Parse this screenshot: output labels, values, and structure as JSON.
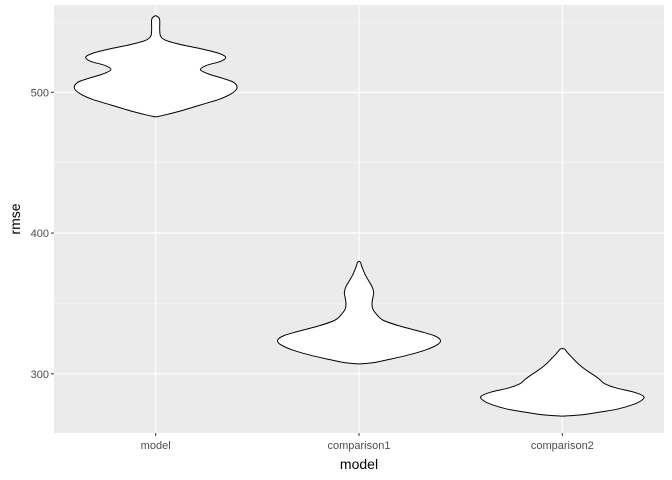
{
  "chart_data": {
    "type": "violin",
    "xlabel": "model",
    "ylabel": "rmse",
    "categories": [
      "model",
      "comparison1",
      "comparison2"
    ],
    "ylim": [
      258,
      562
    ],
    "yticks": [
      300,
      400,
      500
    ],
    "grid": true,
    "legend": "none",
    "colors": {
      "panel": "#EBEBEB",
      "grid_major": "#FFFFFF",
      "grid_minor": "#F5F5F5",
      "violin_fill": "#FFFFFF",
      "violin_outline": "#000000",
      "tick_label": "#4D4D4D",
      "axis_title": "#000000"
    },
    "violins": [
      {
        "category": "model",
        "min": 482.5,
        "max": 554.5,
        "density_profile": [
          [
            482.5,
            0.0
          ],
          [
            484,
            0.12
          ],
          [
            487,
            0.32
          ],
          [
            491,
            0.55
          ],
          [
            495,
            0.78
          ],
          [
            499,
            0.93
          ],
          [
            503,
            1.0
          ],
          [
            507,
            0.96
          ],
          [
            510,
            0.82
          ],
          [
            513,
            0.65
          ],
          [
            516,
            0.55
          ],
          [
            519,
            0.62
          ],
          [
            522,
            0.8
          ],
          [
            525,
            0.86
          ],
          [
            528,
            0.76
          ],
          [
            531,
            0.55
          ],
          [
            534,
            0.3
          ],
          [
            537,
            0.12
          ],
          [
            540,
            0.06
          ],
          [
            544,
            0.05
          ],
          [
            548,
            0.05
          ],
          [
            551,
            0.05
          ],
          [
            553,
            0.04
          ],
          [
            554.5,
            0.0
          ]
        ]
      },
      {
        "category": "comparison1",
        "min": 307,
        "max": 380,
        "density_profile": [
          [
            307,
            0.0
          ],
          [
            308,
            0.18
          ],
          [
            310,
            0.35
          ],
          [
            313,
            0.58
          ],
          [
            317,
            0.82
          ],
          [
            321,
            0.97
          ],
          [
            324,
            1.0
          ],
          [
            327,
            0.93
          ],
          [
            330,
            0.76
          ],
          [
            334,
            0.5
          ],
          [
            338,
            0.3
          ],
          [
            342,
            0.22
          ],
          [
            346,
            0.17
          ],
          [
            350,
            0.16
          ],
          [
            354,
            0.17
          ],
          [
            358,
            0.18
          ],
          [
            362,
            0.16
          ],
          [
            366,
            0.12
          ],
          [
            370,
            0.08
          ],
          [
            374,
            0.05
          ],
          [
            377,
            0.03
          ],
          [
            379,
            0.02
          ],
          [
            380,
            0.0
          ]
        ]
      },
      {
        "category": "comparison2",
        "min": 270,
        "max": 318,
        "density_profile": [
          [
            270,
            0.0
          ],
          [
            271,
            0.25
          ],
          [
            273,
            0.48
          ],
          [
            275,
            0.68
          ],
          [
            278,
            0.86
          ],
          [
            281,
            0.97
          ],
          [
            284,
            1.0
          ],
          [
            287,
            0.88
          ],
          [
            290,
            0.66
          ],
          [
            293,
            0.52
          ],
          [
            296,
            0.46
          ],
          [
            299,
            0.39
          ],
          [
            302,
            0.31
          ],
          [
            305,
            0.24
          ],
          [
            308,
            0.18
          ],
          [
            311,
            0.13
          ],
          [
            314,
            0.08
          ],
          [
            316,
            0.05
          ],
          [
            317.5,
            0.03
          ],
          [
            318,
            0.0
          ]
        ]
      }
    ]
  }
}
